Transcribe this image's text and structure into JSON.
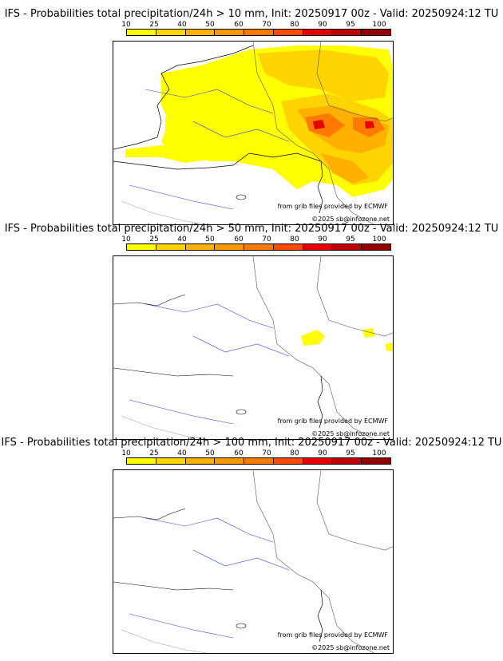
{
  "colorbar": {
    "labels": [
      "10",
      "25",
      "40",
      "50",
      "60",
      "70",
      "80",
      "90",
      "95",
      "100"
    ],
    "colors": [
      "#ffff00",
      "#ffd400",
      "#ffb000",
      "#ff9800",
      "#ff7a00",
      "#ff4a00",
      "#e60000",
      "#c00000",
      "#960000",
      "#6e0000"
    ]
  },
  "panels": [
    {
      "title": "IFS - Probabilities total precipitation/24h > 10 mm, Init: 20250917 00z - Valid: 20250924:12 TU",
      "credit_source": "from grib files provided by ECMWF",
      "credit_site": "©2025 sb@infozone.net"
    },
    {
      "title": "IFS - Probabilities total precipitation/24h > 50 mm, Init: 20250917 00z - Valid: 20250924:12 TU",
      "credit_source": "from grib files provided by ECMWF",
      "credit_site": "©2025 sb@infozone.net"
    },
    {
      "title": "IFS - Probabilities total precipitation/24h > 100 mm, Init: 20250917 00z - Valid: 20250924:12 TU",
      "credit_source": "from grib files provided by ECMWF",
      "credit_site": "©2025 sb@infozone.net"
    }
  ]
}
